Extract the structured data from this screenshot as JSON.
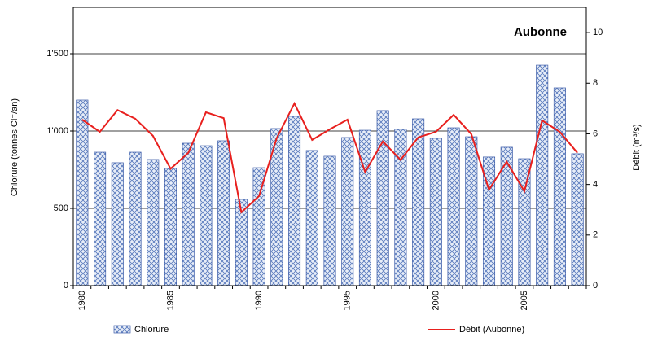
{
  "chart_data": {
    "type": "bar",
    "annotation": "Aubonne",
    "y_label": "Chlorure (tonnes Cl⁻/an)",
    "y2_label": "Débit (m³/s)",
    "categories": [
      "1980",
      null,
      null,
      null,
      null,
      "1985",
      null,
      null,
      null,
      null,
      "1990",
      null,
      null,
      null,
      null,
      "1995",
      null,
      null,
      null,
      null,
      "2000",
      null,
      null,
      null,
      null,
      "2005",
      null,
      null,
      null
    ],
    "series": [
      {
        "name": "Chlorure",
        "type": "bar",
        "color": "#3b5ba8",
        "values": [
          1200,
          863,
          795,
          863,
          816,
          758,
          921,
          905,
          937,
          558,
          763,
          1016,
          1095,
          874,
          837,
          958,
          1005,
          1132,
          1011,
          1079,
          953,
          1021,
          963,
          832,
          895,
          821,
          1426,
          1279,
          853
        ]
      },
      {
        "name": "Débit (Aubonne)",
        "type": "line",
        "axis": "y2",
        "color": "#e8201e",
        "values": [
          6.56,
          6.08,
          6.94,
          6.6,
          5.92,
          4.62,
          5.25,
          6.85,
          6.62,
          2.9,
          3.54,
          5.83,
          7.2,
          5.76,
          6.18,
          6.56,
          4.49,
          5.7,
          4.97,
          5.86,
          6.08,
          6.75,
          5.99,
          3.79,
          4.9,
          3.73,
          6.53,
          6.08,
          5.25
        ]
      }
    ],
    "ylim": [
      0,
      1800
    ],
    "yticks": [
      0,
      500,
      {
        "value": 1000,
        "label": "1'000"
      },
      {
        "value": 1500,
        "label": "1'500"
      }
    ],
    "y2lim": [
      0,
      11
    ],
    "y2ticks": [
      0,
      2,
      4,
      6,
      8,
      10
    ],
    "grid": true
  }
}
